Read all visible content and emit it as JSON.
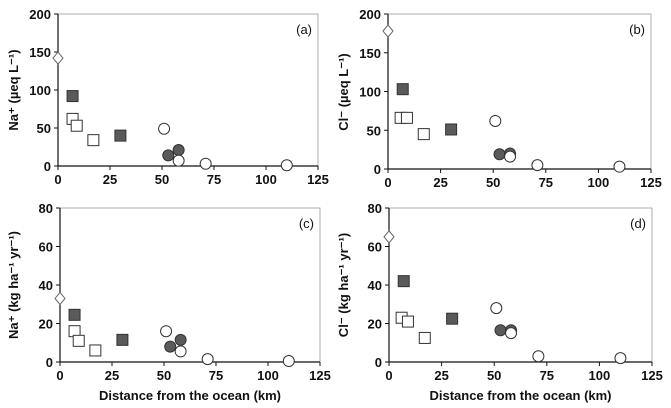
{
  "chart_data": [
    {
      "type": "scatter",
      "panel_label": "(a)",
      "ylabel": "Na⁺ (µeq L⁻¹)",
      "xlabel": "",
      "xlim": [
        0,
        125
      ],
      "ylim": [
        0,
        200
      ],
      "xticks": [
        0,
        25,
        50,
        75,
        100,
        125
      ],
      "yticks": [
        0,
        50,
        100,
        150,
        200
      ],
      "series": [
        {
          "name": "open-diamond",
          "points": [
            [
              0,
              142
            ]
          ]
        },
        {
          "name": "filled-square",
          "points": [
            [
              7,
              92
            ],
            [
              30,
              40
            ]
          ]
        },
        {
          "name": "open-square",
          "points": [
            [
              7,
              62
            ],
            [
              9,
              53
            ],
            [
              17,
              34
            ]
          ]
        },
        {
          "name": "filled-circle",
          "points": [
            [
              53,
              14
            ],
            [
              58,
              21
            ]
          ]
        },
        {
          "name": "open-circle",
          "points": [
            [
              51,
              49
            ],
            [
              58,
              7
            ],
            [
              71,
              3
            ],
            [
              110,
              1
            ]
          ]
        }
      ]
    },
    {
      "type": "scatter",
      "panel_label": "(b)",
      "ylabel": "Cl⁻ (µeq L⁻¹)",
      "xlabel": "",
      "xlim": [
        0,
        125
      ],
      "ylim": [
        0,
        200
      ],
      "xticks": [
        0,
        25,
        50,
        75,
        100,
        125
      ],
      "yticks": [
        0,
        50,
        100,
        150,
        200
      ],
      "series": [
        {
          "name": "open-diamond",
          "points": [
            [
              0,
              178
            ]
          ]
        },
        {
          "name": "filled-square",
          "points": [
            [
              7,
              103
            ],
            [
              30,
              51
            ]
          ]
        },
        {
          "name": "open-square",
          "points": [
            [
              6,
              66
            ],
            [
              9,
              66
            ],
            [
              17,
              45
            ]
          ]
        },
        {
          "name": "filled-circle",
          "points": [
            [
              53,
              19
            ],
            [
              58,
              20
            ]
          ]
        },
        {
          "name": "open-circle",
          "points": [
            [
              51,
              62
            ],
            [
              58,
              16
            ],
            [
              71,
              5
            ],
            [
              110,
              3
            ]
          ]
        }
      ]
    },
    {
      "type": "scatter",
      "panel_label": "(c)",
      "ylabel": "Na⁺ (kg ha⁻¹ yr⁻¹)",
      "xlabel": "Distance from the ocean (km)",
      "xlim": [
        0,
        125
      ],
      "ylim": [
        0,
        80
      ],
      "xticks": [
        0,
        25,
        50,
        75,
        100,
        125
      ],
      "yticks": [
        0,
        20,
        40,
        60,
        80
      ],
      "series": [
        {
          "name": "open-diamond",
          "points": [
            [
              0,
              33
            ]
          ]
        },
        {
          "name": "filled-square",
          "points": [
            [
              7,
              24.5
            ],
            [
              30,
              11.5
            ]
          ]
        },
        {
          "name": "open-square",
          "points": [
            [
              7,
              16
            ],
            [
              9,
              11
            ],
            [
              17,
              6
            ]
          ]
        },
        {
          "name": "filled-circle",
          "points": [
            [
              53,
              8
            ],
            [
              58,
              11.5
            ]
          ]
        },
        {
          "name": "open-circle",
          "points": [
            [
              51,
              16
            ],
            [
              58,
              5.5
            ],
            [
              71,
              1.5
            ],
            [
              110,
              0.5
            ]
          ]
        }
      ]
    },
    {
      "type": "scatter",
      "panel_label": "(d)",
      "ylabel": "Cl⁻ (kg ha⁻¹ yr⁻¹)",
      "xlabel": "Distance from the ocean (km)",
      "xlim": [
        0,
        125
      ],
      "ylim": [
        0,
        80
      ],
      "xticks": [
        0,
        25,
        50,
        75,
        100,
        125
      ],
      "yticks": [
        0,
        20,
        40,
        60,
        80
      ],
      "series": [
        {
          "name": "open-diamond",
          "points": [
            [
              0,
              65
            ]
          ]
        },
        {
          "name": "filled-square",
          "points": [
            [
              7,
              42
            ],
            [
              30,
              22.5
            ]
          ]
        },
        {
          "name": "open-square",
          "points": [
            [
              6,
              23
            ],
            [
              9,
              21
            ],
            [
              17,
              12.5
            ]
          ]
        },
        {
          "name": "filled-circle",
          "points": [
            [
              53,
              16.5
            ],
            [
              58,
              16.5
            ]
          ]
        },
        {
          "name": "open-circle",
          "points": [
            [
              51,
              28
            ],
            [
              58,
              15
            ],
            [
              71,
              3
            ],
            [
              110,
              2
            ]
          ]
        }
      ]
    }
  ],
  "colors": {
    "filled": "#5a5a5a",
    "stroke": "#333333",
    "open": "#ffffff"
  }
}
